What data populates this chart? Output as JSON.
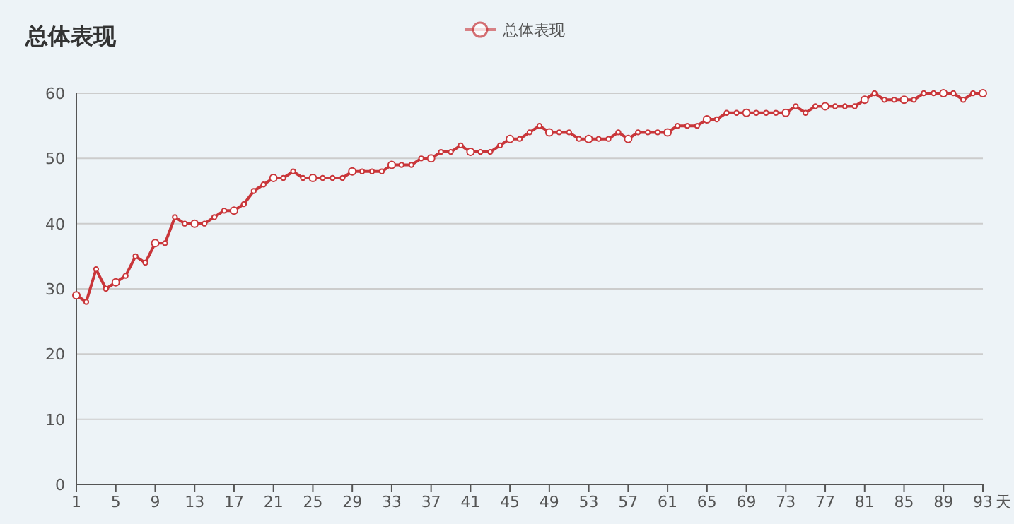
{
  "chart_data": {
    "type": "line",
    "title": "总体表现",
    "xlabel": "天",
    "x": [
      1,
      2,
      3,
      4,
      5,
      6,
      7,
      8,
      9,
      10,
      11,
      12,
      13,
      14,
      15,
      16,
      17,
      18,
      19,
      20,
      21,
      22,
      23,
      24,
      25,
      26,
      27,
      28,
      29,
      30,
      31,
      32,
      33,
      34,
      35,
      36,
      37,
      38,
      39,
      40,
      41,
      42,
      43,
      44,
      45,
      46,
      47,
      48,
      49,
      50,
      51,
      52,
      53,
      54,
      55,
      56,
      57,
      58,
      59,
      60,
      61,
      62,
      63,
      64,
      65,
      66,
      67,
      68,
      69,
      70,
      71,
      72,
      73,
      74,
      75,
      76,
      77,
      78,
      79,
      80,
      81,
      82,
      83,
      84,
      85,
      86,
      87,
      88,
      89,
      90,
      91,
      92,
      93
    ],
    "series": [
      {
        "name": "总体表现",
        "color": "#c9363a",
        "values": [
          29,
          28,
          33,
          30,
          31,
          32,
          35,
          34,
          37,
          37,
          41,
          40,
          40,
          40,
          41,
          42,
          42,
          43,
          45,
          46,
          47,
          47,
          48,
          47,
          47,
          47,
          47,
          47,
          48,
          48,
          48,
          48,
          49,
          49,
          49,
          50,
          50,
          51,
          51,
          52,
          51,
          51,
          51,
          52,
          53,
          53,
          54,
          55,
          54,
          54,
          54,
          53,
          53,
          53,
          53,
          54,
          53,
          54,
          54,
          54,
          54,
          55,
          55,
          55,
          56,
          56,
          57,
          57,
          57,
          57,
          57,
          57,
          57,
          58,
          57,
          58,
          58,
          58,
          58,
          58,
          59,
          60,
          59,
          59,
          59,
          59,
          60,
          60,
          60,
          60,
          59,
          60,
          60
        ]
      }
    ],
    "xlim": [
      1,
      93
    ],
    "xticks": [
      1,
      5,
      9,
      13,
      17,
      21,
      25,
      29,
      33,
      37,
      41,
      45,
      49,
      53,
      57,
      61,
      65,
      69,
      73,
      77,
      81,
      85,
      89,
      93
    ],
    "ylim": [
      0,
      60
    ],
    "yticks": [
      0,
      10,
      20,
      30,
      40,
      50,
      60
    ],
    "grid": "y",
    "legend": "top",
    "marker": "circle",
    "line_style": "solid"
  }
}
